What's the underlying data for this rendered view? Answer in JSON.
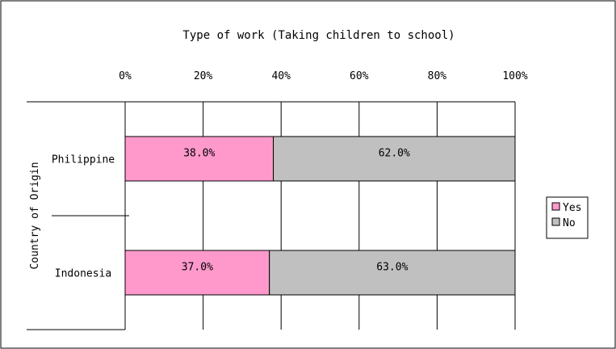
{
  "chart_data": {
    "type": "bar",
    "orientation": "horizontal",
    "stacked": true,
    "percent": true,
    "title": "Type of work (Taking children to school)",
    "ylabel": "Country of Origin",
    "xlabel": "",
    "categories": [
      "Philippine",
      "Indonesia"
    ],
    "x_ticks": [
      "0%",
      "20%",
      "40%",
      "60%",
      "80%",
      "100%"
    ],
    "xlim": [
      0,
      100
    ],
    "series": [
      {
        "name": "Yes",
        "values": [
          38.0,
          37.0
        ],
        "labels": [
          "38.0%",
          "37.0%"
        ],
        "color": "#ff99cc"
      },
      {
        "name": "No",
        "values": [
          62.0,
          63.0
        ],
        "labels": [
          "62.0%",
          "63.0%"
        ],
        "color": "#c0c0c0"
      }
    ],
    "grid": true,
    "legend_position": "right"
  }
}
